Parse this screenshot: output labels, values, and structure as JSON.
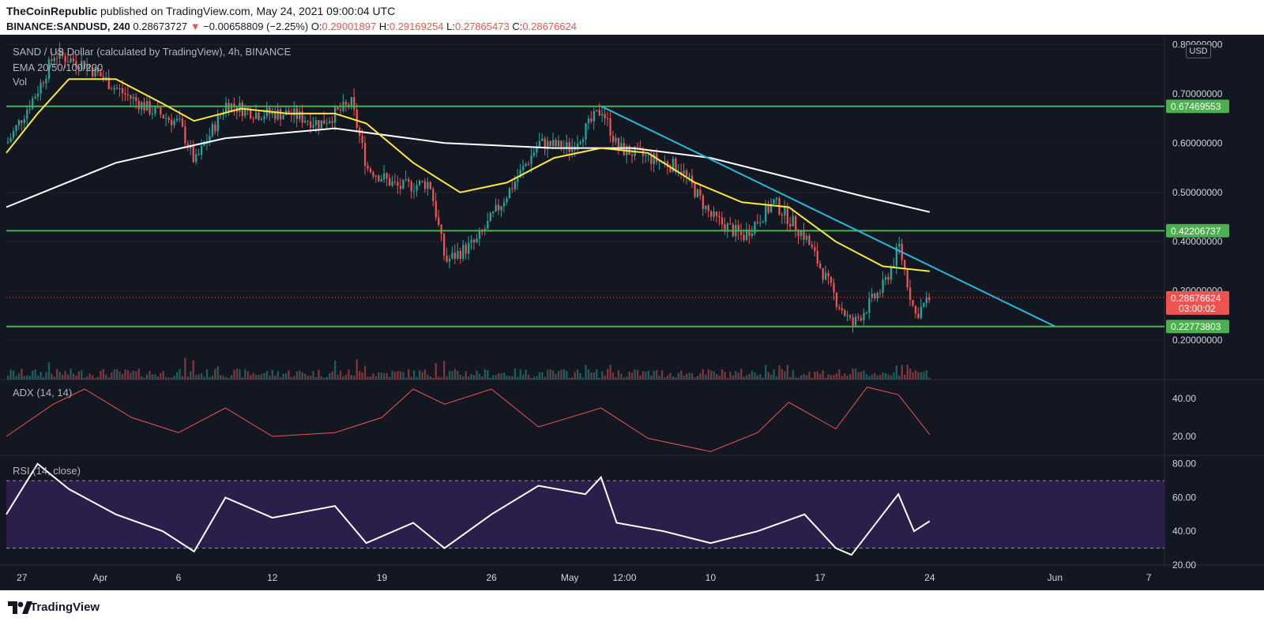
{
  "header": {
    "publisher": "TheCoinRepublic",
    "published_text": "published on TradingView.com, May 24, 2021 09:00:04 UTC",
    "symbol": "BINANCE:SANDUSD, 240",
    "last_price": "0.28673727",
    "change_arrow": "▼",
    "change": "−0.00658809 (−2.25%)",
    "o_label": "O:",
    "o_value": "0.29001897",
    "h_label": "H:",
    "h_value": "0.29169254",
    "l_label": "L:",
    "l_value": "0.27865473",
    "c_label": "C:",
    "c_value": "0.28676624"
  },
  "legend": {
    "series_title": "SAND / US Dollar (calculated by TradingView), 4h, BINANCE",
    "ema": "EMA 20/50/100/200",
    "vol": "Vol",
    "adx": "ADX (14, 14)",
    "rsi": "RSI (14, close)"
  },
  "currency_button": "USD",
  "footer": {
    "brand": "TradingView",
    "logo_icon": "tradingview-logo-icon"
  },
  "colors": {
    "background": "#131722",
    "up": "#26a69a",
    "down": "#ef5350",
    "ema_yellow": "#fbe83a",
    "ema_white": "#ffffff",
    "support_green": "#4caf50",
    "trendline": "#29b6d8",
    "adx": "#ef5350",
    "rsi": "#ffffff",
    "rsi_band": "#2a1f4a"
  },
  "price_axis": {
    "ticks": [
      "0.20000000",
      "0.30000000",
      "0.40000000",
      "0.50000000",
      "0.60000000",
      "0.70000000",
      "0.80000000"
    ],
    "labels": [
      {
        "text": "0.67469553",
        "color": "#4caf50"
      },
      {
        "text": "0.42206737",
        "color": "#4caf50"
      },
      {
        "text": "0.28676624",
        "sub": "03:00:02",
        "color": "#ef5350"
      },
      {
        "text": "0.22773803",
        "color": "#4caf50"
      }
    ]
  },
  "adx_axis": [
    "40.00",
    "20.00"
  ],
  "rsi_axis": [
    "80.00",
    "60.00",
    "40.00",
    "20.00"
  ],
  "time_axis": [
    "27",
    "Apr",
    "6",
    "12",
    "19",
    "26",
    "May",
    "12:00",
    "10",
    "17",
    "24",
    "Jun",
    "7"
  ],
  "chart_data": [
    {
      "type": "candlestick",
      "title": "SAND / US Dollar (calculated by TradingView), 4h, BINANCE",
      "x_range": [
        "2021-03-26",
        "2021-06-08"
      ],
      "ylim": [
        0.12,
        0.82
      ],
      "support_levels": [
        0.67469553,
        0.42206737,
        0.22773803
      ],
      "last_close": 0.28676624,
      "trendline": [
        {
          "date": "2021-05-03",
          "price": 0.675
        },
        {
          "date": "2021-06-01",
          "price": 0.228
        }
      ],
      "close_path": [
        {
          "date": "2021-03-26",
          "price": 0.6
        },
        {
          "date": "2021-03-28",
          "price": 0.71
        },
        {
          "date": "2021-03-29",
          "price": 0.78
        },
        {
          "date": "2021-03-31",
          "price": 0.76
        },
        {
          "date": "2021-04-02",
          "price": 0.71
        },
        {
          "date": "2021-04-04",
          "price": 0.67
        },
        {
          "date": "2021-04-06",
          "price": 0.64
        },
        {
          "date": "2021-04-07",
          "price": 0.56
        },
        {
          "date": "2021-04-09",
          "price": 0.68
        },
        {
          "date": "2021-04-11",
          "price": 0.66
        },
        {
          "date": "2021-04-13",
          "price": 0.66
        },
        {
          "date": "2021-04-15",
          "price": 0.64
        },
        {
          "date": "2021-04-17",
          "price": 0.68
        },
        {
          "date": "2021-04-18",
          "price": 0.55
        },
        {
          "date": "2021-04-20",
          "price": 0.51
        },
        {
          "date": "2021-04-22",
          "price": 0.52
        },
        {
          "date": "2021-04-23",
          "price": 0.36
        },
        {
          "date": "2021-04-25",
          "price": 0.4
        },
        {
          "date": "2021-04-27",
          "price": 0.5
        },
        {
          "date": "2021-04-29",
          "price": 0.6
        },
        {
          "date": "2021-05-01",
          "price": 0.59
        },
        {
          "date": "2021-05-03",
          "price": 0.67
        },
        {
          "date": "2021-05-04",
          "price": 0.59
        },
        {
          "date": "2021-05-06",
          "price": 0.57
        },
        {
          "date": "2021-05-08",
          "price": 0.55
        },
        {
          "date": "2021-05-10",
          "price": 0.45
        },
        {
          "date": "2021-05-12",
          "price": 0.41
        },
        {
          "date": "2021-05-14",
          "price": 0.48
        },
        {
          "date": "2021-05-16",
          "price": 0.41
        },
        {
          "date": "2021-05-18",
          "price": 0.28
        },
        {
          "date": "2021-05-19",
          "price": 0.23
        },
        {
          "date": "2021-05-21",
          "price": 0.31
        },
        {
          "date": "2021-05-22",
          "price": 0.39
        },
        {
          "date": "2021-05-23",
          "price": 0.25
        },
        {
          "date": "2021-05-24",
          "price": 0.287
        }
      ],
      "ema_fast_path": [
        {
          "date": "2021-03-26",
          "price": 0.58
        },
        {
          "date": "2021-03-28",
          "price": 0.66
        },
        {
          "date": "2021-03-30",
          "price": 0.73
        },
        {
          "date": "2021-04-02",
          "price": 0.73
        },
        {
          "date": "2021-04-05",
          "price": 0.68
        },
        {
          "date": "2021-04-07",
          "price": 0.645
        },
        {
          "date": "2021-04-10",
          "price": 0.67
        },
        {
          "date": "2021-04-13",
          "price": 0.66
        },
        {
          "date": "2021-04-16",
          "price": 0.66
        },
        {
          "date": "2021-04-18",
          "price": 0.64
        },
        {
          "date": "2021-04-21",
          "price": 0.56
        },
        {
          "date": "2021-04-24",
          "price": 0.5
        },
        {
          "date": "2021-04-27",
          "price": 0.52
        },
        {
          "date": "2021-04-30",
          "price": 0.57
        },
        {
          "date": "2021-05-03",
          "price": 0.59
        },
        {
          "date": "2021-05-06",
          "price": 0.58
        },
        {
          "date": "2021-05-09",
          "price": 0.52
        },
        {
          "date": "2021-05-12",
          "price": 0.48
        },
        {
          "date": "2021-05-15",
          "price": 0.47
        },
        {
          "date": "2021-05-18",
          "price": 0.4
        },
        {
          "date": "2021-05-21",
          "price": 0.35
        },
        {
          "date": "2021-05-24",
          "price": 0.34
        }
      ],
      "ema_slow_path": [
        {
          "date": "2021-03-26",
          "price": 0.47
        },
        {
          "date": "2021-04-02",
          "price": 0.56
        },
        {
          "date": "2021-04-09",
          "price": 0.61
        },
        {
          "date": "2021-04-16",
          "price": 0.63
        },
        {
          "date": "2021-04-23",
          "price": 0.6
        },
        {
          "date": "2021-04-30",
          "price": 0.59
        },
        {
          "date": "2021-05-05",
          "price": 0.59
        },
        {
          "date": "2021-05-10",
          "price": 0.57
        },
        {
          "date": "2021-05-15",
          "price": 0.53
        },
        {
          "date": "2021-05-20",
          "price": 0.49
        },
        {
          "date": "2021-05-24",
          "price": 0.46
        }
      ]
    },
    {
      "type": "line",
      "title": "ADX (14, 14)",
      "ylim": [
        10,
        50
      ],
      "points": [
        {
          "date": "2021-03-26",
          "value": 20
        },
        {
          "date": "2021-03-29",
          "value": 37
        },
        {
          "date": "2021-03-31",
          "value": 45
        },
        {
          "date": "2021-04-03",
          "value": 30
        },
        {
          "date": "2021-04-06",
          "value": 22
        },
        {
          "date": "2021-04-09",
          "value": 35
        },
        {
          "date": "2021-04-12",
          "value": 20
        },
        {
          "date": "2021-04-16",
          "value": 22
        },
        {
          "date": "2021-04-19",
          "value": 30
        },
        {
          "date": "2021-04-21",
          "value": 45
        },
        {
          "date": "2021-04-23",
          "value": 37
        },
        {
          "date": "2021-04-26",
          "value": 45
        },
        {
          "date": "2021-04-29",
          "value": 25
        },
        {
          "date": "2021-05-03",
          "value": 35
        },
        {
          "date": "2021-05-06",
          "value": 19
        },
        {
          "date": "2021-05-10",
          "value": 12
        },
        {
          "date": "2021-05-13",
          "value": 22
        },
        {
          "date": "2021-05-15",
          "value": 38
        },
        {
          "date": "2021-05-18",
          "value": 24
        },
        {
          "date": "2021-05-20",
          "value": 46
        },
        {
          "date": "2021-05-22",
          "value": 42
        },
        {
          "date": "2021-05-24",
          "value": 21
        }
      ]
    },
    {
      "type": "line",
      "title": "RSI (14, close)",
      "ylim": [
        20,
        85
      ],
      "bands": [
        30,
        70
      ],
      "points": [
        {
          "date": "2021-03-26",
          "value": 50
        },
        {
          "date": "2021-03-28",
          "value": 80
        },
        {
          "date": "2021-03-30",
          "value": 65
        },
        {
          "date": "2021-04-02",
          "value": 50
        },
        {
          "date": "2021-04-05",
          "value": 40
        },
        {
          "date": "2021-04-07",
          "value": 28
        },
        {
          "date": "2021-04-09",
          "value": 60
        },
        {
          "date": "2021-04-12",
          "value": 48
        },
        {
          "date": "2021-04-16",
          "value": 55
        },
        {
          "date": "2021-04-18",
          "value": 33
        },
        {
          "date": "2021-04-21",
          "value": 45
        },
        {
          "date": "2021-04-23",
          "value": 30
        },
        {
          "date": "2021-04-26",
          "value": 50
        },
        {
          "date": "2021-04-29",
          "value": 67
        },
        {
          "date": "2021-05-02",
          "value": 62
        },
        {
          "date": "2021-05-03",
          "value": 72
        },
        {
          "date": "2021-05-04",
          "value": 45
        },
        {
          "date": "2021-05-07",
          "value": 40
        },
        {
          "date": "2021-05-10",
          "value": 33
        },
        {
          "date": "2021-05-13",
          "value": 40
        },
        {
          "date": "2021-05-16",
          "value": 50
        },
        {
          "date": "2021-05-18",
          "value": 30
        },
        {
          "date": "2021-05-19",
          "value": 26
        },
        {
          "date": "2021-05-21",
          "value": 50
        },
        {
          "date": "2021-05-22",
          "value": 62
        },
        {
          "date": "2021-05-23",
          "value": 40
        },
        {
          "date": "2021-05-24",
          "value": 46
        }
      ]
    }
  ]
}
